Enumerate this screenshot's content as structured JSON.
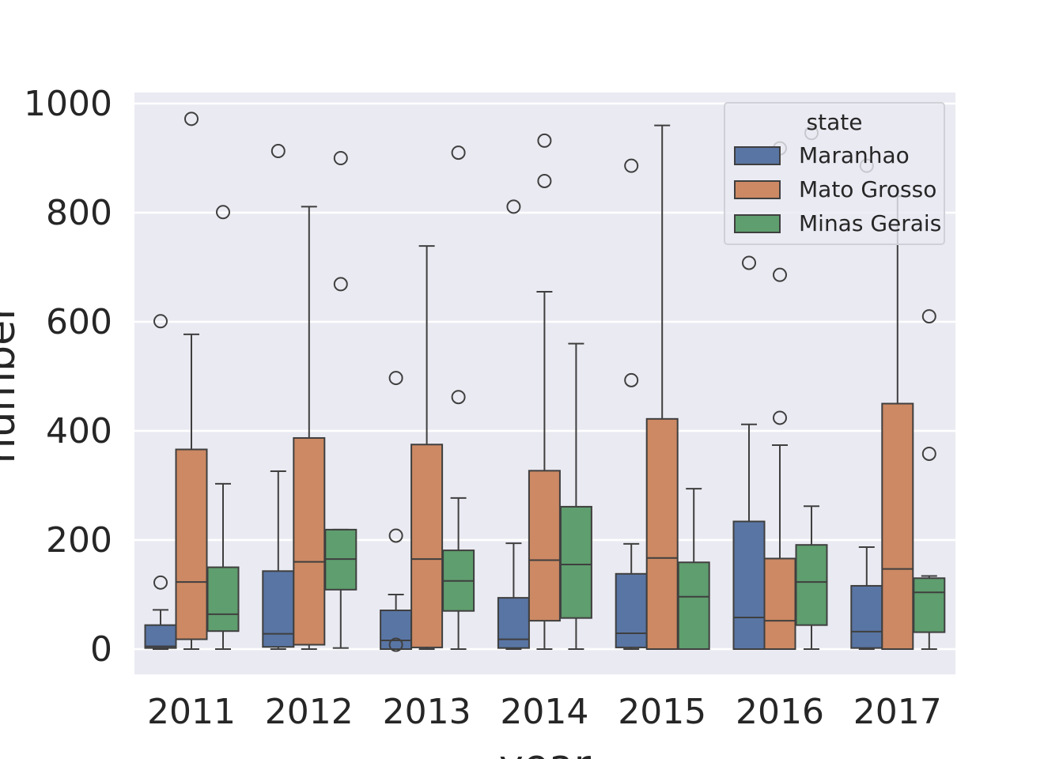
{
  "chart_data": {
    "type": "boxplot",
    "xlabel": "year",
    "ylabel": "number",
    "ylim": [
      -45,
      1020
    ],
    "yticks": [
      0,
      200,
      400,
      600,
      800,
      1000
    ],
    "categories": [
      "2011",
      "2012",
      "2013",
      "2014",
      "2015",
      "2016",
      "2017"
    ],
    "grid": true,
    "legend": {
      "title": "state",
      "placement": "top-right",
      "entries": [
        "Maranhao",
        "Mato Grosso",
        "Minas Gerais"
      ]
    },
    "series": [
      {
        "name": "Maranhao",
        "color": "#5975a4",
        "boxes": [
          {
            "category": "2011",
            "whislo": 0,
            "q1": 2,
            "med": 5,
            "q3": 44,
            "whishi": 72,
            "fliers": [
              122,
              601
            ]
          },
          {
            "category": "2012",
            "whislo": 0,
            "q1": 4,
            "med": 28,
            "q3": 143,
            "whishi": 326,
            "fliers": [
              913
            ]
          },
          {
            "category": "2013",
            "whislo": 0,
            "q1": 0,
            "med": 16,
            "q3": 71,
            "whishi": 100,
            "fliers": [
              208,
              497,
              8
            ]
          },
          {
            "category": "2014",
            "whislo": 0,
            "q1": 2,
            "med": 18,
            "q3": 94,
            "whishi": 194,
            "fliers": [
              811
            ]
          },
          {
            "category": "2015",
            "whislo": 0,
            "q1": 3,
            "med": 29,
            "q3": 138,
            "whishi": 193,
            "fliers": [
              493,
              886
            ]
          },
          {
            "category": "2016",
            "whislo": 0,
            "q1": 0,
            "med": 58,
            "q3": 234,
            "whishi": 412,
            "fliers": [
              708
            ]
          },
          {
            "category": "2017",
            "whislo": 0,
            "q1": 2,
            "med": 32,
            "q3": 116,
            "whishi": 187,
            "fliers": [
              886
            ]
          }
        ]
      },
      {
        "name": "Mato Grosso",
        "color": "#cc8963",
        "boxes": [
          {
            "category": "2011",
            "whislo": 0,
            "q1": 18,
            "med": 123,
            "q3": 366,
            "whishi": 577,
            "fliers": [
              972
            ]
          },
          {
            "category": "2012",
            "whislo": 0,
            "q1": 8,
            "med": 160,
            "q3": 387,
            "whishi": 811,
            "fliers": []
          },
          {
            "category": "2013",
            "whislo": 0,
            "q1": 3,
            "med": 165,
            "q3": 375,
            "whishi": 739,
            "fliers": []
          },
          {
            "category": "2014",
            "whislo": 0,
            "q1": 52,
            "med": 163,
            "q3": 327,
            "whishi": 655,
            "fliers": [
              858,
              932
            ]
          },
          {
            "category": "2015",
            "whislo": 0,
            "q1": 0,
            "med": 167,
            "q3": 422,
            "whishi": 960,
            "fliers": []
          },
          {
            "category": "2016",
            "whislo": 0,
            "q1": 0,
            "med": 52,
            "q3": 166,
            "whishi": 374,
            "fliers": [
              424,
              686,
              918
            ]
          },
          {
            "category": "2017",
            "whislo": 0,
            "q1": 0,
            "med": 147,
            "q3": 450,
            "whishi": 830,
            "fliers": []
          }
        ]
      },
      {
        "name": "Minas Gerais",
        "color": "#5f9e6e",
        "boxes": [
          {
            "category": "2011",
            "whislo": 0,
            "q1": 33,
            "med": 64,
            "q3": 150,
            "whishi": 303,
            "fliers": [
              801
            ]
          },
          {
            "category": "2012",
            "whislo": 2,
            "q1": 109,
            "med": 165,
            "q3": 219,
            "whishi": 219,
            "fliers": [
              669,
              900
            ]
          },
          {
            "category": "2013",
            "whislo": 0,
            "q1": 70,
            "med": 125,
            "q3": 181,
            "whishi": 277,
            "fliers": [
              462,
              910
            ]
          },
          {
            "category": "2014",
            "whislo": 0,
            "q1": 57,
            "med": 155,
            "q3": 261,
            "whishi": 560,
            "fliers": []
          },
          {
            "category": "2015",
            "whislo": 0,
            "q1": 0,
            "med": 96,
            "q3": 159,
            "whishi": 294,
            "fliers": []
          },
          {
            "category": "2016",
            "whislo": 0,
            "q1": 44,
            "med": 123,
            "q3": 191,
            "whishi": 262,
            "fliers": [
              946
            ]
          },
          {
            "category": "2017",
            "whislo": 0,
            "q1": 31,
            "med": 104,
            "q3": 130,
            "whishi": 134,
            "fliers": [
              358,
              610
            ]
          }
        ]
      }
    ]
  }
}
